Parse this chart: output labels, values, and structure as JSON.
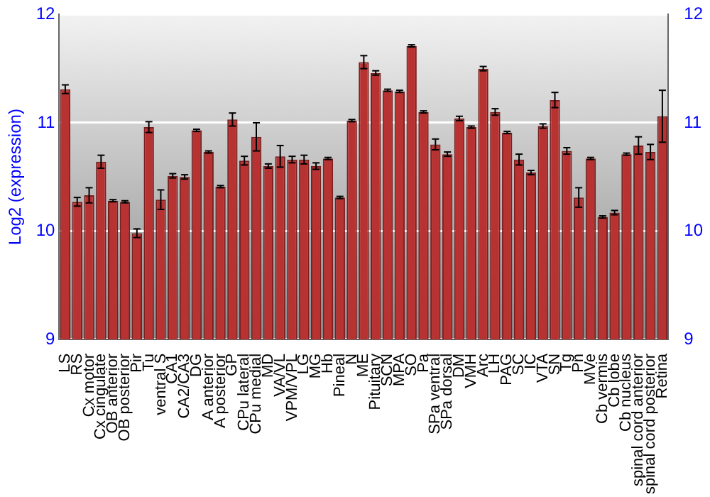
{
  "chart_data": {
    "type": "bar",
    "ylabel": "Log2 (expression)",
    "categories": [
      "LS",
      "RS",
      "Cx motor",
      "Cx cingulate",
      "OB anterior",
      "OB posterior",
      "Pir",
      "Tu",
      "ventral S",
      "CA1",
      "CA2/CA3",
      "DG",
      "A anterior",
      "A posterior",
      "GP",
      "CPu lateral",
      "CPu medial",
      "MD",
      "VA/VL",
      "VPM/VPL",
      "LG",
      "MG",
      "Hb",
      "Pineal",
      "N",
      "ME",
      "Pituitary",
      "SCN",
      "MPA",
      "SO",
      "Pa",
      "SPa ventral",
      "SPa dorsal",
      "DM",
      "VMH",
      "Arc",
      "LH",
      "PAG",
      "SC",
      "IC",
      "VTA",
      "SN",
      "Tg",
      "Pn",
      "MVe",
      "Cb vermis",
      "Cb lobe",
      "Cb nucleus",
      "spinal cord anterior",
      "spinal cord posterior",
      "Retina"
    ],
    "values": [
      11.31,
      10.27,
      10.33,
      10.64,
      10.28,
      10.27,
      9.98,
      10.96,
      10.29,
      10.51,
      10.5,
      10.93,
      10.73,
      10.41,
      11.03,
      10.65,
      10.87,
      10.6,
      10.69,
      10.66,
      10.66,
      10.6,
      10.67,
      10.31,
      11.02,
      11.56,
      11.46,
      11.3,
      11.29,
      11.71,
      11.1,
      10.8,
      10.71,
      11.04,
      10.96,
      11.5,
      11.1,
      10.91,
      10.66,
      10.54,
      10.97,
      11.21,
      10.74,
      10.31,
      10.67,
      10.13,
      10.17,
      10.71,
      10.79,
      10.73,
      11.06
    ],
    "errors": [
      0.04,
      0.04,
      0.07,
      0.06,
      0.01,
      0.01,
      0.04,
      0.05,
      0.09,
      0.02,
      0.02,
      0.01,
      0.01,
      0.01,
      0.06,
      0.04,
      0.13,
      0.02,
      0.1,
      0.03,
      0.04,
      0.03,
      0.01,
      0.01,
      0.01,
      0.06,
      0.02,
      0.01,
      0.01,
      0.01,
      0.01,
      0.05,
      0.02,
      0.02,
      0.01,
      0.02,
      0.03,
      0.01,
      0.05,
      0.02,
      0.02,
      0.07,
      0.03,
      0.09,
      0.01,
      0.01,
      0.02,
      0.01,
      0.08,
      0.07,
      0.24
    ],
    "color": "#b83232",
    "ylim": [
      9,
      12
    ],
    "yticks": [
      9,
      10,
      11,
      12
    ],
    "y2lim": [
      9,
      12
    ],
    "y2ticks": [
      9,
      10,
      11,
      12
    ],
    "grid": "y"
  }
}
